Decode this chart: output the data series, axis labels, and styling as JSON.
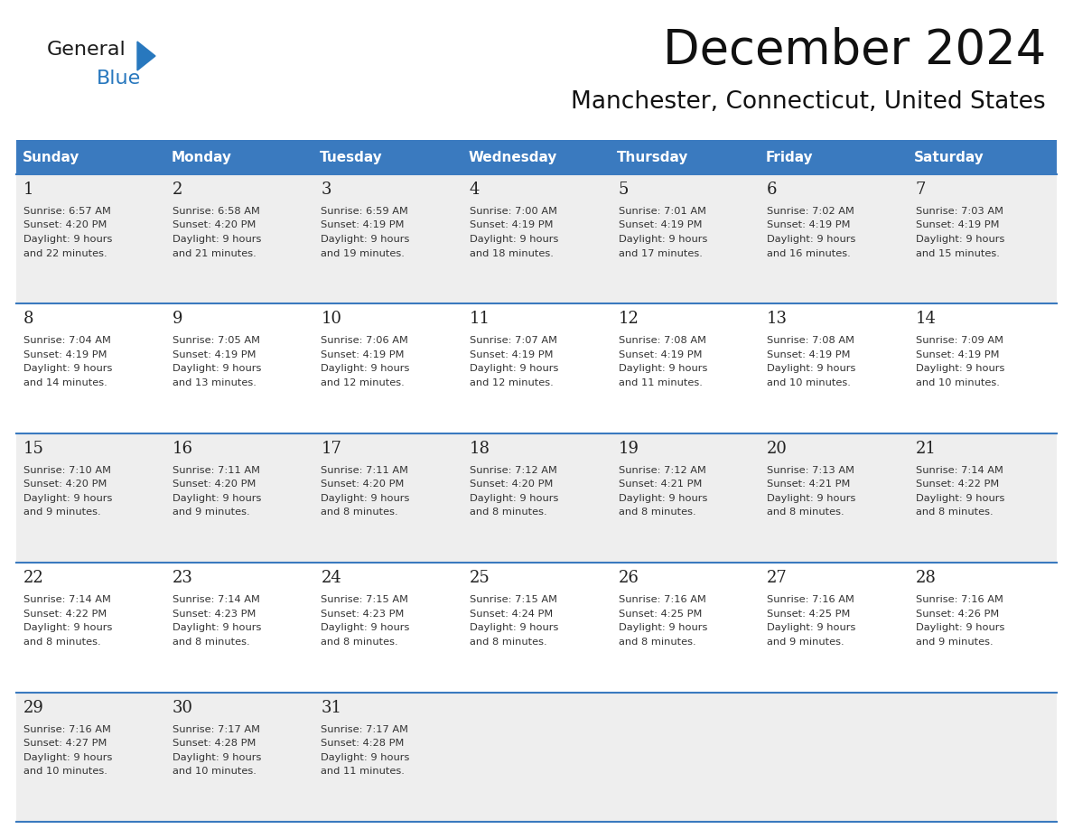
{
  "title": "December 2024",
  "subtitle": "Manchester, Connecticut, United States",
  "header_color": "#3a7abf",
  "header_text_color": "#ffffff",
  "day_names": [
    "Sunday",
    "Monday",
    "Tuesday",
    "Wednesday",
    "Thursday",
    "Friday",
    "Saturday"
  ],
  "odd_row_color": "#eeeeee",
  "even_row_color": "#ffffff",
  "line_color": "#3a7abf",
  "days": [
    {
      "day": 1,
      "col": 0,
      "row": 0,
      "sunrise": "6:57 AM",
      "sunset": "4:20 PM",
      "daylight": "9 hours and 22 minutes."
    },
    {
      "day": 2,
      "col": 1,
      "row": 0,
      "sunrise": "6:58 AM",
      "sunset": "4:20 PM",
      "daylight": "9 hours and 21 minutes."
    },
    {
      "day": 3,
      "col": 2,
      "row": 0,
      "sunrise": "6:59 AM",
      "sunset": "4:19 PM",
      "daylight": "9 hours and 19 minutes."
    },
    {
      "day": 4,
      "col": 3,
      "row": 0,
      "sunrise": "7:00 AM",
      "sunset": "4:19 PM",
      "daylight": "9 hours and 18 minutes."
    },
    {
      "day": 5,
      "col": 4,
      "row": 0,
      "sunrise": "7:01 AM",
      "sunset": "4:19 PM",
      "daylight": "9 hours and 17 minutes."
    },
    {
      "day": 6,
      "col": 5,
      "row": 0,
      "sunrise": "7:02 AM",
      "sunset": "4:19 PM",
      "daylight": "9 hours and 16 minutes."
    },
    {
      "day": 7,
      "col": 6,
      "row": 0,
      "sunrise": "7:03 AM",
      "sunset": "4:19 PM",
      "daylight": "9 hours and 15 minutes."
    },
    {
      "day": 8,
      "col": 0,
      "row": 1,
      "sunrise": "7:04 AM",
      "sunset": "4:19 PM",
      "daylight": "9 hours and 14 minutes."
    },
    {
      "day": 9,
      "col": 1,
      "row": 1,
      "sunrise": "7:05 AM",
      "sunset": "4:19 PM",
      "daylight": "9 hours and 13 minutes."
    },
    {
      "day": 10,
      "col": 2,
      "row": 1,
      "sunrise": "7:06 AM",
      "sunset": "4:19 PM",
      "daylight": "9 hours and 12 minutes."
    },
    {
      "day": 11,
      "col": 3,
      "row": 1,
      "sunrise": "7:07 AM",
      "sunset": "4:19 PM",
      "daylight": "9 hours and 12 minutes."
    },
    {
      "day": 12,
      "col": 4,
      "row": 1,
      "sunrise": "7:08 AM",
      "sunset": "4:19 PM",
      "daylight": "9 hours and 11 minutes."
    },
    {
      "day": 13,
      "col": 5,
      "row": 1,
      "sunrise": "7:08 AM",
      "sunset": "4:19 PM",
      "daylight": "9 hours and 10 minutes."
    },
    {
      "day": 14,
      "col": 6,
      "row": 1,
      "sunrise": "7:09 AM",
      "sunset": "4:19 PM",
      "daylight": "9 hours and 10 minutes."
    },
    {
      "day": 15,
      "col": 0,
      "row": 2,
      "sunrise": "7:10 AM",
      "sunset": "4:20 PM",
      "daylight": "9 hours and 9 minutes."
    },
    {
      "day": 16,
      "col": 1,
      "row": 2,
      "sunrise": "7:11 AM",
      "sunset": "4:20 PM",
      "daylight": "9 hours and 9 minutes."
    },
    {
      "day": 17,
      "col": 2,
      "row": 2,
      "sunrise": "7:11 AM",
      "sunset": "4:20 PM",
      "daylight": "9 hours and 8 minutes."
    },
    {
      "day": 18,
      "col": 3,
      "row": 2,
      "sunrise": "7:12 AM",
      "sunset": "4:20 PM",
      "daylight": "9 hours and 8 minutes."
    },
    {
      "day": 19,
      "col": 4,
      "row": 2,
      "sunrise": "7:12 AM",
      "sunset": "4:21 PM",
      "daylight": "9 hours and 8 minutes."
    },
    {
      "day": 20,
      "col": 5,
      "row": 2,
      "sunrise": "7:13 AM",
      "sunset": "4:21 PM",
      "daylight": "9 hours and 8 minutes."
    },
    {
      "day": 21,
      "col": 6,
      "row": 2,
      "sunrise": "7:14 AM",
      "sunset": "4:22 PM",
      "daylight": "9 hours and 8 minutes."
    },
    {
      "day": 22,
      "col": 0,
      "row": 3,
      "sunrise": "7:14 AM",
      "sunset": "4:22 PM",
      "daylight": "9 hours and 8 minutes."
    },
    {
      "day": 23,
      "col": 1,
      "row": 3,
      "sunrise": "7:14 AM",
      "sunset": "4:23 PM",
      "daylight": "9 hours and 8 minutes."
    },
    {
      "day": 24,
      "col": 2,
      "row": 3,
      "sunrise": "7:15 AM",
      "sunset": "4:23 PM",
      "daylight": "9 hours and 8 minutes."
    },
    {
      "day": 25,
      "col": 3,
      "row": 3,
      "sunrise": "7:15 AM",
      "sunset": "4:24 PM",
      "daylight": "9 hours and 8 minutes."
    },
    {
      "day": 26,
      "col": 4,
      "row": 3,
      "sunrise": "7:16 AM",
      "sunset": "4:25 PM",
      "daylight": "9 hours and 8 minutes."
    },
    {
      "day": 27,
      "col": 5,
      "row": 3,
      "sunrise": "7:16 AM",
      "sunset": "4:25 PM",
      "daylight": "9 hours and 9 minutes."
    },
    {
      "day": 28,
      "col": 6,
      "row": 3,
      "sunrise": "7:16 AM",
      "sunset": "4:26 PM",
      "daylight": "9 hours and 9 minutes."
    },
    {
      "day": 29,
      "col": 0,
      "row": 4,
      "sunrise": "7:16 AM",
      "sunset": "4:27 PM",
      "daylight": "9 hours and 10 minutes."
    },
    {
      "day": 30,
      "col": 1,
      "row": 4,
      "sunrise": "7:17 AM",
      "sunset": "4:28 PM",
      "daylight": "9 hours and 10 minutes."
    },
    {
      "day": 31,
      "col": 2,
      "row": 4,
      "sunrise": "7:17 AM",
      "sunset": "4:28 PM",
      "daylight": "9 hours and 11 minutes."
    }
  ],
  "num_rows": 5,
  "logo_general_color": "#1a1a1a",
  "logo_blue_color": "#2878be",
  "logo_triangle_color": "#2878be"
}
